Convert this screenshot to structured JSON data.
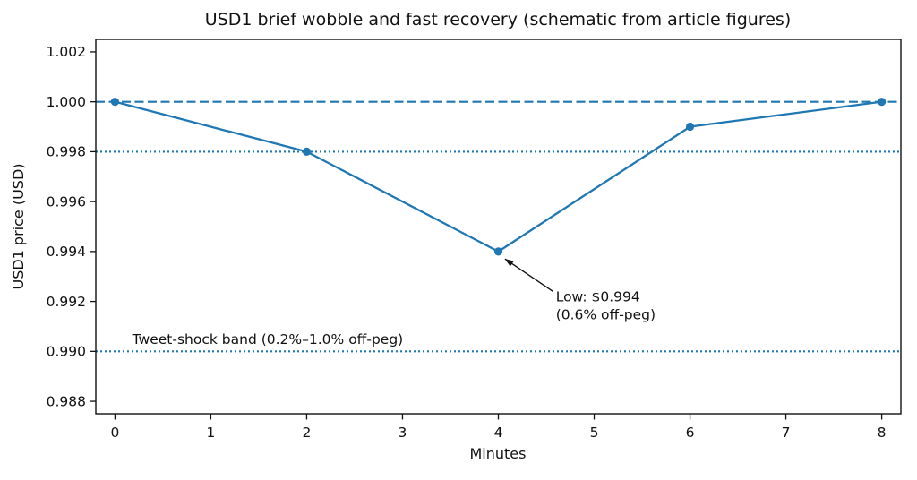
{
  "figure": {
    "background": "#ffffff",
    "accent": "#1f77b4",
    "text_color": "#111111"
  },
  "chart_data": {
    "type": "line",
    "title": "USD1 brief wobble and fast recovery (schematic from article figures)",
    "xlabel": "Minutes",
    "ylabel": "USD1 price (USD)",
    "x": [
      0,
      2,
      4,
      6,
      8
    ],
    "series": [
      {
        "name": "USD1 price",
        "color": "#1f77b4",
        "marker": "circle",
        "values": [
          1.0,
          0.998,
          0.994,
          0.999,
          1.0
        ]
      }
    ],
    "xlim": [
      -0.2,
      8.2
    ],
    "ylim": [
      0.9875,
      1.0025
    ],
    "xticks": [
      "0",
      "1",
      "2",
      "3",
      "4",
      "5",
      "6",
      "7",
      "8"
    ],
    "yticks": [
      "0.988",
      "0.990",
      "0.992",
      "0.994",
      "0.996",
      "0.998",
      "1.000",
      "1.002"
    ],
    "grid": false,
    "legend": "none",
    "reference_lines": [
      {
        "y": 1.0,
        "style": "dashed",
        "color": "#1f77b4",
        "meaning": "peg at $1.000"
      },
      {
        "y": 0.998,
        "style": "dotted",
        "color": "#1f77b4",
        "meaning": "0.2% off-peg"
      },
      {
        "y": 0.99,
        "style": "dotted",
        "color": "#1f77b4",
        "meaning": "1.0% off-peg"
      }
    ],
    "annotation": {
      "lines": [
        "Low: $0.994",
        "(0.6% off-peg)"
      ],
      "point": {
        "x": 4,
        "y": 0.994
      },
      "text_pos": {
        "x": 4.6,
        "y": 0.992
      },
      "arrow": {
        "from": {
          "x": 4.57,
          "y": 0.9924
        },
        "to": {
          "x": 4.07,
          "y": 0.9937
        }
      },
      "arrow_color": "#111111"
    },
    "band_label": {
      "text": "Tweet-shock band (0.2%–1.0% off-peg)",
      "x": 0.18,
      "y": 0.9903
    }
  }
}
